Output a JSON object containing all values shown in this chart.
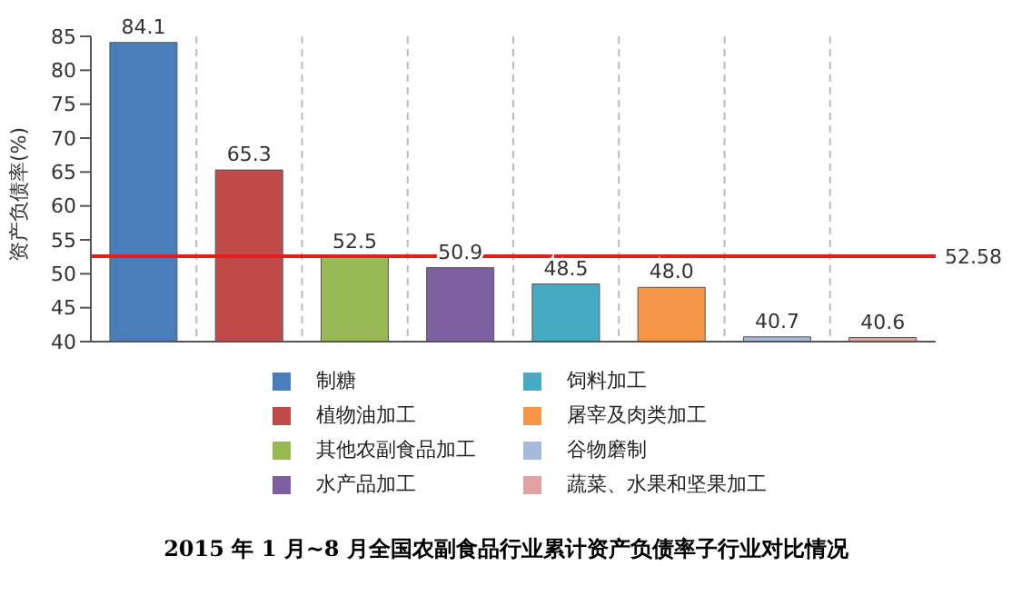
{
  "chart_data": {
    "type": "bar",
    "title": "2015 年 1 月~8 月全国农副食品行业累计资产负债率子行业对比情况",
    "ylabel": "资产负债率(%)",
    "categories": [
      null,
      null,
      null,
      null,
      null,
      null,
      null,
      null
    ],
    "stacked": true,
    "series": [
      {
        "name": "制糖",
        "color": "#4a7ebb",
        "values": [
          84.1,
          null,
          null,
          null,
          null,
          null,
          null,
          null
        ],
        "value_labels": [
          "84.1",
          null,
          null,
          null,
          null,
          null,
          null,
          null
        ]
      },
      {
        "name": "植物油加工",
        "color": "#be4b48",
        "values": [
          null,
          65.3,
          null,
          null,
          null,
          null,
          null,
          null
        ],
        "value_labels": [
          null,
          "65.3",
          null,
          null,
          null,
          null,
          null,
          null
        ]
      },
      {
        "name": "其他农副食品加工",
        "color": "#98b954",
        "values": [
          null,
          null,
          52.5,
          null,
          null,
          null,
          null,
          null
        ],
        "value_labels": [
          null,
          null,
          "52.5",
          null,
          null,
          null,
          null,
          null
        ]
      },
      {
        "name": "水产品加工",
        "color": "#7d60a0",
        "values": [
          null,
          null,
          null,
          50.9,
          null,
          null,
          null,
          null
        ],
        "value_labels": [
          null,
          null,
          null,
          "50.9",
          null,
          null,
          null,
          null
        ]
      },
      {
        "name": "饲料加工",
        "color": "#46aac5",
        "values": [
          null,
          null,
          null,
          null,
          48.5,
          null,
          null,
          null
        ],
        "value_labels": [
          null,
          null,
          null,
          null,
          "48.5",
          null,
          null,
          null
        ]
      },
      {
        "name": "屠宰及肉类加工",
        "color": "#f79646",
        "values": [
          null,
          null,
          null,
          null,
          null,
          48.0,
          null,
          null
        ],
        "value_labels": [
          null,
          null,
          null,
          null,
          null,
          "48.0",
          null,
          null
        ]
      },
      {
        "name": "谷物磨制",
        "color": "#a5b9da",
        "values": [
          null,
          null,
          null,
          null,
          null,
          null,
          40.7,
          null
        ],
        "value_labels": [
          null,
          null,
          null,
          null,
          null,
          null,
          "40.7",
          null
        ]
      },
      {
        "name": "蔬菜、水果和坚果加工",
        "color": "#e0a3a2",
        "values": [
          null,
          null,
          null,
          null,
          null,
          null,
          null,
          40.6
        ],
        "value_labels": [
          null,
          null,
          null,
          null,
          null,
          null,
          null,
          "40.6"
        ]
      }
    ],
    "ylim": [
      40,
      85
    ],
    "yticks": [
      40,
      45,
      50,
      55,
      60,
      65,
      70,
      75,
      80,
      85
    ],
    "ref_lines": [
      {
        "axis": "y",
        "value": 52.58,
        "label": "52.58",
        "color": "#e02020"
      }
    ],
    "grid": "x",
    "legend": "bottom",
    "tick_labels": "y"
  }
}
